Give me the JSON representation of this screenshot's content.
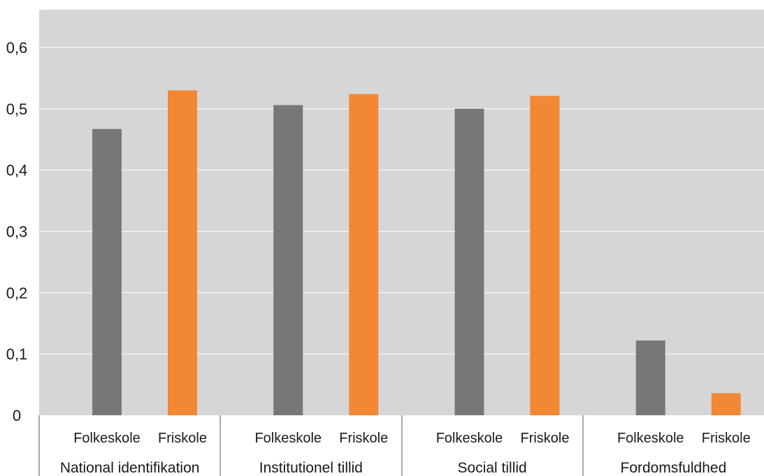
{
  "chart_data": {
    "type": "bar",
    "groups": [
      "National identifikation",
      "Institutionel tillid",
      "Social tillid",
      "Fordomsfuldhed"
    ],
    "sub_categories": [
      "Folkeskole",
      "Friskole"
    ],
    "series": [
      {
        "values": [
          0.467,
          0.506,
          0.5,
          0.122
        ],
        "color": "#767878"
      },
      {
        "values": [
          0.53,
          0.524,
          0.521,
          0.036
        ],
        "color": "#f28834"
      }
    ],
    "yticks": [
      "0",
      "0,1",
      "0,2",
      "0,3",
      "0,4",
      "0,5",
      "0,6"
    ],
    "ylim": [
      0,
      0.66
    ],
    "grid": true,
    "plot_background": "#d6d6d6",
    "title": "",
    "xlabel": "",
    "ylabel": ""
  }
}
